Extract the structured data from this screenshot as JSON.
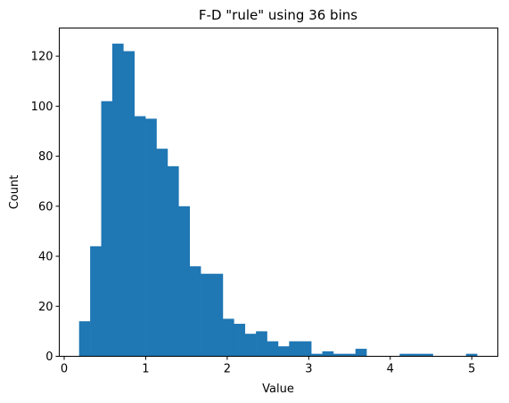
{
  "chart_data": {
    "type": "bar",
    "title": "F-D \"rule\" using 36 bins",
    "xlabel": "Value",
    "ylabel": "Count",
    "xlim": [
      -0.06,
      5.32
    ],
    "ylim": [
      0,
      131.25
    ],
    "xticks": [
      0,
      1,
      2,
      3,
      4,
      5
    ],
    "yticks": [
      0,
      20,
      40,
      60,
      80,
      100,
      120
    ],
    "grid": false,
    "bar_color": "#1f77b4",
    "bin_start": 0.183,
    "bin_width": 0.1356,
    "counts": [
      14,
      44,
      102,
      125,
      122,
      96,
      95,
      83,
      76,
      60,
      36,
      33,
      33,
      15,
      13,
      9,
      10,
      6,
      4,
      6,
      6,
      1,
      2,
      1,
      1,
      3,
      0,
      0,
      0,
      1,
      1,
      1,
      0,
      0,
      0,
      1
    ]
  }
}
